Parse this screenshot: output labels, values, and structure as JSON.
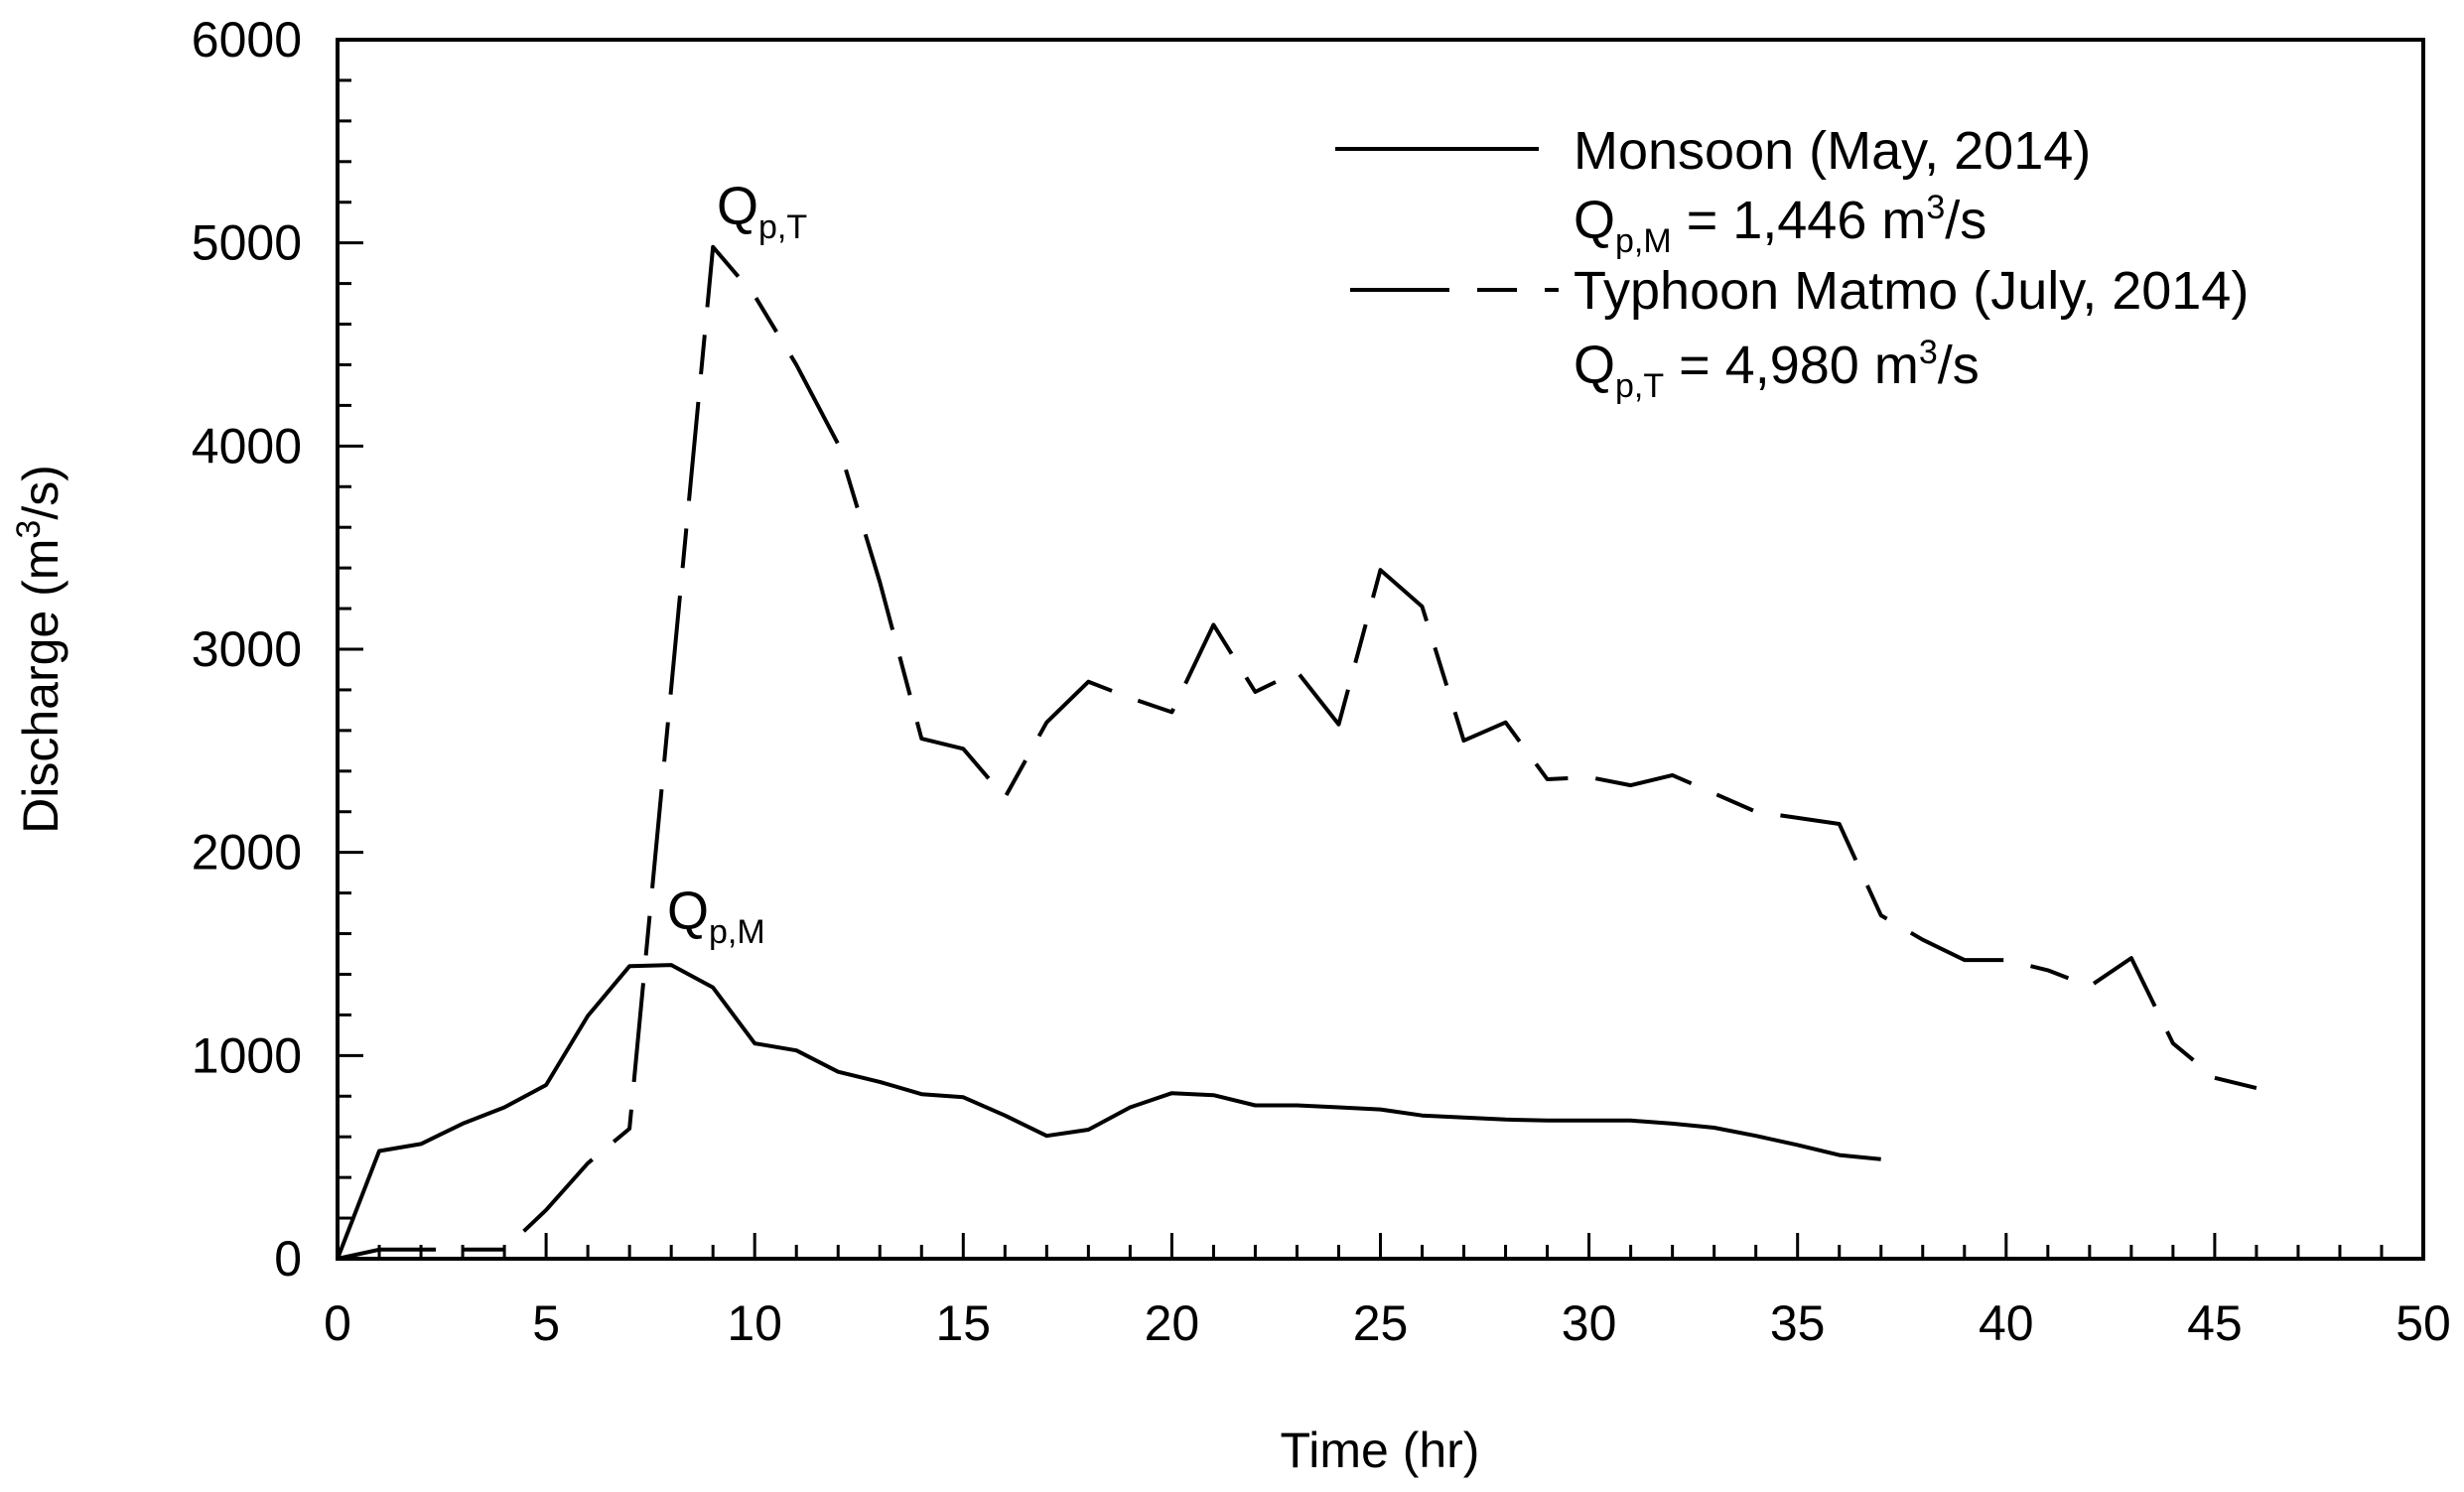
{
  "chart_data": {
    "type": "line",
    "title": "",
    "xlabel": "Time (hr)",
    "ylabel": "Discharge (m³/s)",
    "xlim": [
      0,
      50
    ],
    "ylim": [
      0,
      6000
    ],
    "xticks": [
      0,
      5,
      10,
      15,
      20,
      25,
      30,
      35,
      40,
      45,
      50
    ],
    "yticks": [
      0,
      1000,
      2000,
      3000,
      4000,
      5000,
      6000
    ],
    "xtick_labels": [
      "0",
      "5",
      "10",
      "15",
      "20",
      "25",
      "30",
      "35",
      "40",
      "45",
      "50"
    ],
    "ytick_labels": [
      "0",
      "1000",
      "2000",
      "3000",
      "4000",
      "5000",
      "6000"
    ],
    "grid": false,
    "legend_position": "top-right",
    "series": [
      {
        "name": "Monsoon (May, 2014)",
        "style": "solid",
        "peak_label": "Q",
        "peak_sub": "p,M",
        "peak_eq": " = 1,446 m",
        "peak_sup": "3",
        "peak_unit": "/s",
        "x": [
          0,
          1,
          2,
          3,
          4,
          5,
          6,
          7,
          8,
          9,
          10,
          11,
          12,
          13,
          14,
          15,
          16,
          17,
          18,
          19,
          20,
          21,
          22,
          23,
          24,
          25,
          26,
          27,
          28,
          29,
          30,
          31,
          32,
          33,
          34,
          35,
          36,
          37
        ],
        "values": [
          0,
          530,
          565,
          665,
          745,
          855,
          1195,
          1440,
          1446,
          1335,
          1060,
          1025,
          920,
          870,
          810,
          795,
          705,
          605,
          635,
          745,
          815,
          805,
          755,
          755,
          745,
          735,
          705,
          695,
          685,
          680,
          680,
          680,
          665,
          645,
          605,
          560,
          510,
          490
        ]
      },
      {
        "name": "Typhoon Matmo (July, 2014)",
        "style": "long-dash",
        "peak_label": "Q",
        "peak_sub": "p,T",
        "peak_eq": " = 4,980 m",
        "peak_sup": "3",
        "peak_unit": "/s",
        "x": [
          0,
          1,
          2,
          3,
          4,
          5,
          6,
          7,
          9,
          10,
          11,
          12,
          13,
          14,
          15,
          16,
          17,
          18,
          19,
          20,
          21,
          22,
          23,
          24,
          25,
          26,
          27,
          28,
          29,
          30,
          31,
          32,
          33,
          34,
          35,
          36,
          37,
          38,
          39,
          40,
          41,
          42,
          43,
          44,
          45,
          46
        ],
        "values": [
          0,
          45,
          45,
          45,
          45,
          240,
          470,
          640,
          4980,
          4740,
          4400,
          4010,
          3330,
          2560,
          2510,
          2270,
          2640,
          2840,
          2760,
          2690,
          3120,
          2790,
          2890,
          2630,
          3390,
          3210,
          2550,
          2640,
          2360,
          2370,
          2330,
          2380,
          2290,
          2200,
          2170,
          2140,
          1690,
          1570,
          1470,
          1470,
          1420,
          1340,
          1480,
          1060,
          890,
          840
        ]
      }
    ],
    "annotations": [
      {
        "base": "Q",
        "sub": "p,T",
        "x": 9.5,
        "y": 5000
      },
      {
        "base": "Q",
        "sub": "p,M",
        "x": 8.1,
        "y": 1550
      }
    ]
  },
  "colors": {
    "line": "#000000",
    "background": "#ffffff"
  }
}
